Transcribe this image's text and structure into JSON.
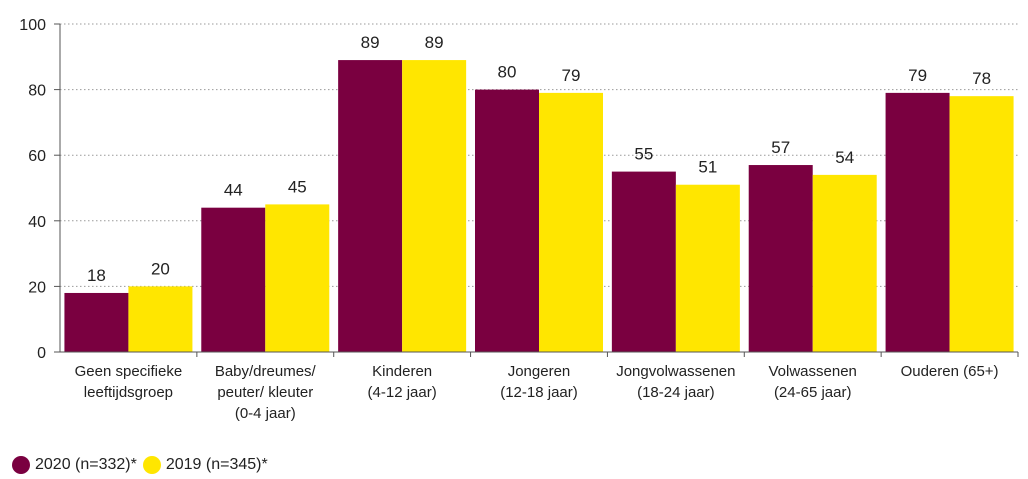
{
  "chart_data": {
    "type": "bar",
    "title": "",
    "xlabel": "",
    "ylabel": "",
    "ylim": [
      0,
      100
    ],
    "yticks": [
      0,
      20,
      40,
      60,
      80,
      100
    ],
    "grid": "horizontal-dotted",
    "legend_position": "bottom-left",
    "categories": [
      [
        "Geen specifieke",
        "leeftijdsgroep"
      ],
      [
        "Baby/dreumes/",
        "peuter/ kleuter",
        "(0-4 jaar)"
      ],
      [
        "Kinderen",
        "(4-12 jaar)"
      ],
      [
        "Jongeren",
        "(12-18 jaar)"
      ],
      [
        "Jongvolwassenen",
        "(18-24 jaar)"
      ],
      [
        "Volwassenen",
        "(24-65 jaar)"
      ],
      [
        "Ouderen (65+)"
      ]
    ],
    "series": [
      {
        "name": "2020 (n=332)*",
        "color": "#7a0040",
        "values": [
          18,
          44,
          89,
          80,
          55,
          57,
          79
        ]
      },
      {
        "name": "2019 (n=345)*",
        "color": "#ffe600",
        "values": [
          20,
          45,
          89,
          79,
          51,
          54,
          78
        ]
      }
    ]
  }
}
